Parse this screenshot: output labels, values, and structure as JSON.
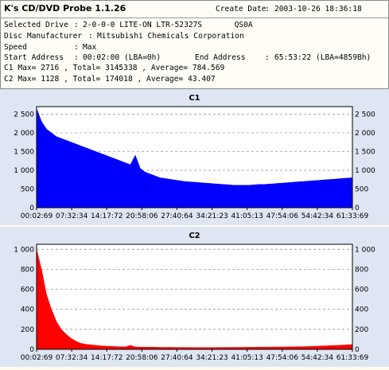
{
  "header": {
    "app_title": "K's CD/DVD Probe 1.1.26",
    "create_date_label": "Create Date",
    "create_date_value": "2003-10-26 18:36:18",
    "selected_drive_label": "Selected Drive",
    "selected_drive_value": "2-0-0-0 LITE-ON LTR-52327S       QS0A",
    "disc_manufacturer_label": "Disc Manufacturer",
    "disc_manufacturer_value": "Mitsubishi Chemicals Corporation",
    "speed_label": "Speed",
    "speed_value": "Max",
    "start_address_label": "Start Address",
    "start_address_value": "00:02:00 (LBA=0h)",
    "end_address_label": "End Address",
    "end_address_value": "65:53:22 (LBA=4859Bh)",
    "c1_summary": "C1 Max= 2716 , Total= 3145338 , Average= 784.569",
    "c2_summary": "C2 Max= 1128 , Total= 174018 , Average= 43.407"
  },
  "colors": {
    "c1": "#0000ff",
    "c2": "#ff0000",
    "panel_bg": "#dde6f2",
    "plot_bg": "#ffffff"
  },
  "chart_data": [
    {
      "type": "area",
      "title": "C1",
      "x_ticks": [
        "00:02:69",
        "07:32:34",
        "14:17:72",
        "20:58:06",
        "27:40:64",
        "34:21:23",
        "41:05:13",
        "47:54:06",
        "54:42:34",
        "61:33:69"
      ],
      "y_ticks": [
        "0",
        "500",
        "1 000",
        "1 500",
        "2 000",
        "2 500"
      ],
      "ylim": [
        0,
        2700
      ],
      "grid": true,
      "series": [
        {
          "values": [
            2650,
            2300,
            2100,
            2000,
            1900,
            1850,
            1800,
            1750,
            1700,
            1650,
            1600,
            1550,
            1500,
            1450,
            1400,
            1350,
            1300,
            1250,
            1200,
            1150,
            1400,
            1050,
            950,
            900,
            850,
            800,
            780,
            760,
            740,
            720,
            700,
            690,
            680,
            670,
            660,
            650,
            640,
            630,
            620,
            610,
            600,
            600,
            600,
            600,
            610,
            620,
            620,
            630,
            640,
            650,
            660,
            670,
            680,
            690,
            700,
            710,
            720,
            730,
            740,
            750,
            760,
            770,
            780,
            790,
            800
          ]
        }
      ]
    },
    {
      "type": "area",
      "title": "C2",
      "x_ticks": [
        "00:02:69",
        "07:32:34",
        "14:17:72",
        "20:58:06",
        "27:40:64",
        "34:21:23",
        "41:05:13",
        "47:54:06",
        "54:42:34",
        "61:33:69"
      ],
      "y_ticks": [
        "0",
        "200",
        "400",
        "600",
        "800",
        "1 000"
      ],
      "ylim": [
        0,
        1050
      ],
      "grid": true,
      "series": [
        {
          "values": [
            1000,
            800,
            550,
            400,
            280,
            200,
            150,
            110,
            80,
            60,
            50,
            45,
            40,
            35,
            32,
            30,
            28,
            26,
            25,
            40,
            24,
            23,
            22,
            22,
            21,
            20,
            20,
            20,
            19,
            19,
            19,
            18,
            18,
            18,
            18,
            18,
            18,
            19,
            19,
            19,
            20,
            20,
            20,
            21,
            21,
            22,
            22,
            23,
            23,
            24,
            24,
            25,
            25,
            26,
            27,
            28,
            30,
            32,
            34,
            36,
            38,
            40,
            42,
            45,
            48
          ]
        }
      ]
    }
  ]
}
